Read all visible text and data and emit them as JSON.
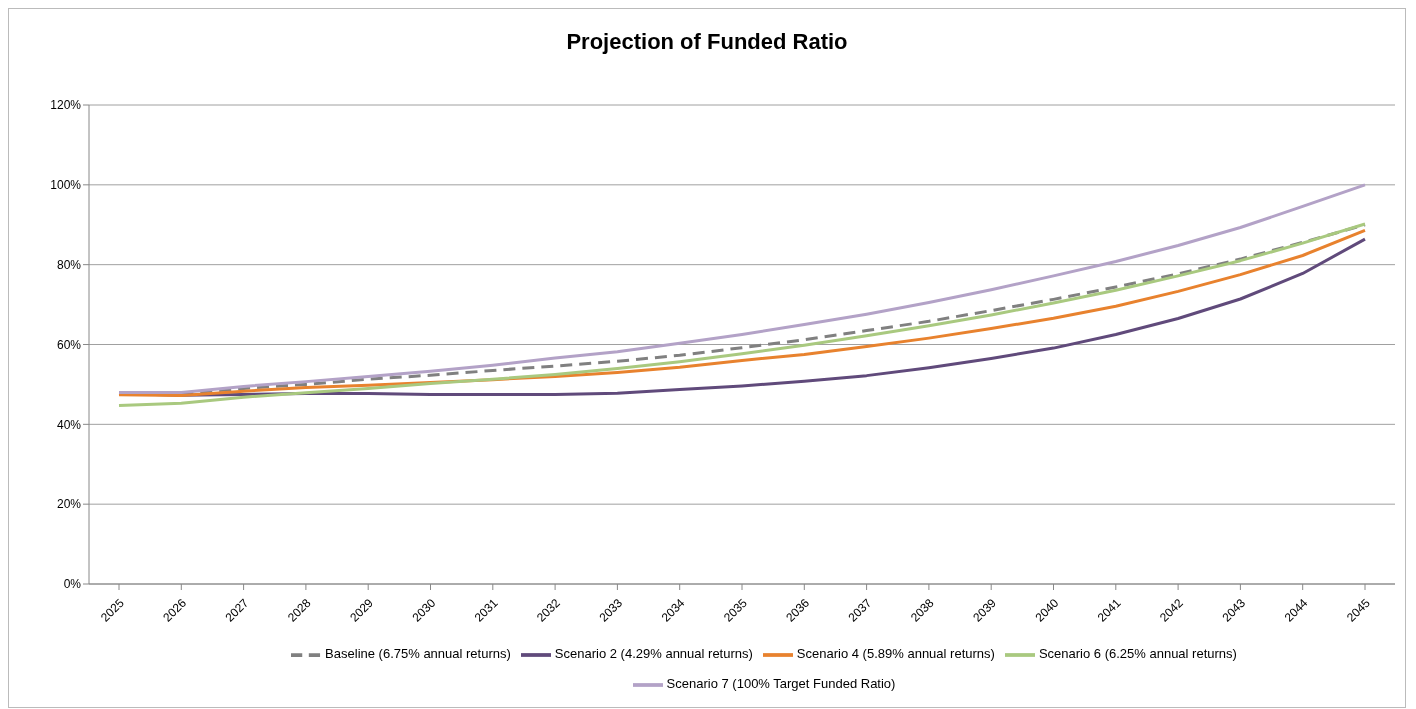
{
  "chart_data": {
    "type": "line",
    "title": "Projection of Funded Ratio",
    "categories": [
      "2025",
      "2026",
      "2027",
      "2028",
      "2029",
      "2030",
      "2031",
      "2032",
      "2033",
      "2034",
      "2035",
      "2036",
      "2037",
      "2038",
      "2039",
      "2040",
      "2041",
      "2042",
      "2043",
      "2044",
      "2045"
    ],
    "series": [
      {
        "name": "Baseline (6.75% annual returns)",
        "color": "#808080",
        "line_style": "dashed",
        "values": [
          null,
          47.7,
          49,
          50,
          51.3,
          52.3,
          53.5,
          54.6,
          55.8,
          57.3,
          59.2,
          61.2,
          63.5,
          65.8,
          68.5,
          71.3,
          74.4,
          77.7,
          81.4,
          85.6,
          90
        ]
      },
      {
        "name": "Scenario 2 (4.29% annual returns)",
        "color": "#604a7b",
        "line_style": "solid",
        "values": [
          47.7,
          47.3,
          47.5,
          47.7,
          47.7,
          47.5,
          47.5,
          47.5,
          47.8,
          48.7,
          49.6,
          50.8,
          52.2,
          54.2,
          56.5,
          59.1,
          62.5,
          66.5,
          71.4,
          77.8,
          86.4
        ]
      },
      {
        "name": "Scenario 4 (5.89% annual returns)",
        "color": "#e8822e",
        "line_style": "solid",
        "values": [
          47.4,
          47.2,
          48.3,
          49.2,
          49.8,
          50.5,
          51.2,
          52,
          53,
          54.3,
          56,
          57.5,
          59.5,
          61.6,
          64,
          66.6,
          69.6,
          73.3,
          77.5,
          82.3,
          88.6
        ]
      },
      {
        "name": "Scenario 6 (6.25% annual returns)",
        "color": "#a9c97f",
        "line_style": "solid",
        "values": [
          44.7,
          45.3,
          46.8,
          47.9,
          49,
          50.2,
          51.3,
          52.5,
          54,
          55.7,
          57.7,
          59.8,
          62.2,
          64.7,
          67.4,
          70.4,
          73.6,
          77.2,
          81,
          85.4,
          90.2
        ]
      },
      {
        "name": "Scenario 7 (100% Target Funded Ratio)",
        "color": "#b3a2c7",
        "line_style": "solid",
        "values": [
          48,
          48,
          49.5,
          50.7,
          52,
          53.3,
          54.8,
          56.6,
          58.2,
          60.3,
          62.5,
          65,
          67.6,
          70.5,
          73.7,
          77.2,
          80.8,
          84.8,
          89.3,
          94.6,
          100
        ]
      }
    ],
    "ylim": [
      0,
      120
    ],
    "yticks": [
      {
        "value": 0,
        "label": "0%"
      },
      {
        "value": 20,
        "label": "20%"
      },
      {
        "value": 40,
        "label": "40%"
      },
      {
        "value": 60,
        "label": "60%"
      },
      {
        "value": 80,
        "label": "80%"
      },
      {
        "value": 100,
        "label": "100%"
      },
      {
        "value": 120,
        "label": "120%"
      }
    ],
    "grid": "y",
    "legend": "bottom",
    "marker": "none"
  }
}
